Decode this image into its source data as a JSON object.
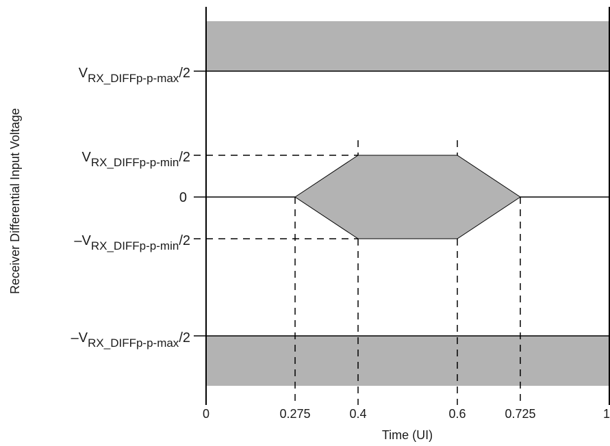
{
  "diagram": {
    "x_axis_label": "Time (UI)",
    "y_axis_label": "Receiver Differential Input Voltage",
    "x_ticks": [
      "0",
      "0.275",
      "0.4",
      "0.6",
      "0.725",
      "1"
    ],
    "levels": {
      "vmax": {
        "prefix": "V",
        "sub": "RX_DIFFp-p-max",
        "suffix": "/2"
      },
      "vmin": {
        "prefix": "V",
        "sub": "RX_DIFFp-p-min",
        "suffix": "/2"
      },
      "zero": "0",
      "neg_vmin": {
        "prefix": "–V",
        "sub": "RX_DIFFp-p-min",
        "suffix": "/2"
      },
      "neg_vmax": {
        "prefix": "–V",
        "sub": "RX_DIFFp-p-max",
        "suffix": "/2"
      }
    },
    "eye_mask_points_ui": [
      0.275,
      0.4,
      0.6,
      0.725
    ],
    "colors": {
      "region_fill": "#b3b3b3",
      "line": "#000000"
    }
  }
}
